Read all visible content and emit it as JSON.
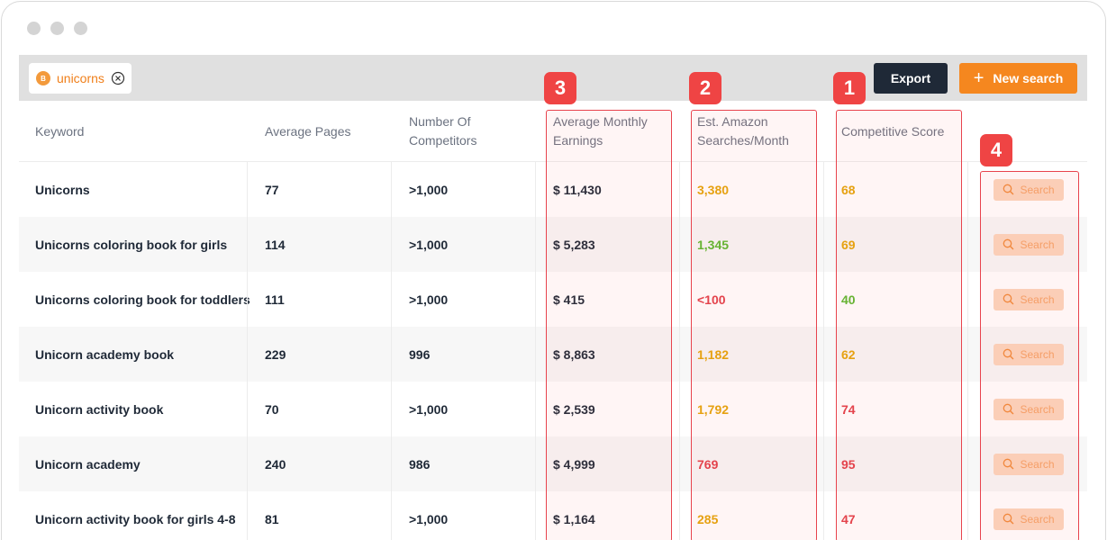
{
  "filter_chip": {
    "badge": "B",
    "label": "unicorns"
  },
  "toolbar": {
    "export_label": "Export",
    "new_search_label": "New search"
  },
  "columns": {
    "keyword": "Keyword",
    "average_pages": "Average Pages",
    "competitors_1": "Number Of",
    "competitors_2": "Competitors",
    "earnings_1": "Average Monthly",
    "earnings_2": "Earnings",
    "searches_1": "Est. Amazon",
    "searches_2": "Searches/Month",
    "score": "Competitive Score"
  },
  "colors": {
    "yellow": "#e5a50a",
    "green": "#5cb82f",
    "red": "#e2404a",
    "accent": "#f5871f"
  },
  "rows": [
    {
      "keyword": "Unicorns",
      "pages": "77",
      "competitors": ">1,000",
      "earnings": "$ 11,430",
      "searches": "3,380",
      "searches_color": "#e5a50a",
      "score": "68",
      "score_color": "#e5a50a",
      "action": "Search"
    },
    {
      "keyword": "Unicorns coloring book for girls",
      "pages": "114",
      "competitors": ">1,000",
      "earnings": "$ 5,283",
      "searches": "1,345",
      "searches_color": "#5cb82f",
      "score": "69",
      "score_color": "#e5a50a",
      "action": "Search"
    },
    {
      "keyword": "Unicorns coloring book for  toddlers",
      "pages": "111",
      "competitors": ">1,000",
      "earnings": "$ 415",
      "searches": "<100",
      "searches_color": "#e2404a",
      "score": "40",
      "score_color": "#5cb82f",
      "action": "Search"
    },
    {
      "keyword": "Unicorn academy book",
      "pages": "229",
      "competitors": "996",
      "earnings": "$ 8,863",
      "searches": "1,182",
      "searches_color": "#e5a50a",
      "score": "62",
      "score_color": "#e5a50a",
      "action": "Search"
    },
    {
      "keyword": "Unicorn activity book",
      "pages": "70",
      "competitors": ">1,000",
      "earnings": "$ 2,539",
      "searches": "1,792",
      "searches_color": "#e5a50a",
      "score": "74",
      "score_color": "#e2404a",
      "action": "Search"
    },
    {
      "keyword": "Unicorn academy",
      "pages": "240",
      "competitors": "986",
      "earnings": "$ 4,999",
      "searches": "769",
      "searches_color": "#e2404a",
      "score": "95",
      "score_color": "#e2404a",
      "action": "Search"
    },
    {
      "keyword": "Unicorn activity book for girls 4-8",
      "pages": "81",
      "competitors": ">1,000",
      "earnings": "$ 1,164",
      "searches": "285",
      "searches_color": "#e5a50a",
      "score": "47",
      "score_color": "#e2404a",
      "action": "Search"
    }
  ],
  "callouts": {
    "score": "1",
    "searches": "2",
    "earnings": "3",
    "action": "4"
  }
}
